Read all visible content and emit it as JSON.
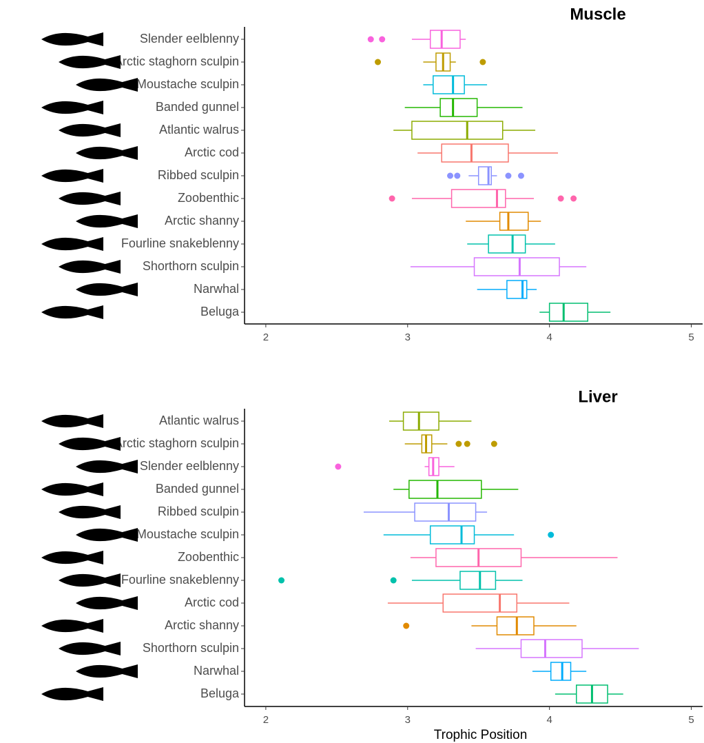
{
  "chart_data": [
    {
      "type": "boxplot",
      "title": "Muscle",
      "xlim": [
        1.85,
        5.08
      ],
      "xticks": [
        2,
        3,
        4,
        5
      ],
      "boxes": [
        {
          "category": "Slender eelblenny",
          "color": "#F962DD",
          "min": 3.03,
          "q1": 3.16,
          "median": 3.24,
          "q3": 3.37,
          "max": 3.41,
          "outliers": [
            2.74,
            2.82
          ]
        },
        {
          "category": "Arctic staghorn sculpin",
          "color": "#BE9C00",
          "min": 3.11,
          "q1": 3.2,
          "median": 3.25,
          "q3": 3.3,
          "max": 3.34,
          "outliers": [
            2.79,
            3.53
          ]
        },
        {
          "category": "Moustache sculpin",
          "color": "#00BBDA",
          "min": 3.11,
          "q1": 3.18,
          "median": 3.32,
          "q3": 3.4,
          "max": 3.56,
          "outliers": []
        },
        {
          "category": "Banded gunnel",
          "color": "#24B700",
          "min": 2.98,
          "q1": 3.23,
          "median": 3.32,
          "q3": 3.49,
          "max": 3.81,
          "outliers": []
        },
        {
          "category": "Atlantic walrus",
          "color": "#8CAB00",
          "min": 2.9,
          "q1": 3.03,
          "median": 3.42,
          "q3": 3.67,
          "max": 3.9,
          "outliers": []
        },
        {
          "category": "Arctic cod",
          "color": "#F8766D",
          "min": 3.07,
          "q1": 3.24,
          "median": 3.45,
          "q3": 3.71,
          "max": 4.06,
          "outliers": []
        },
        {
          "category": "Ribbed sculpin",
          "color": "#8B93FF",
          "min": 3.43,
          "q1": 3.5,
          "median": 3.57,
          "q3": 3.59,
          "max": 3.63,
          "outliers": [
            3.3,
            3.35,
            3.71,
            3.8
          ]
        },
        {
          "category": "Zoobenthic",
          "color": "#FF65AC",
          "min": 3.03,
          "q1": 3.31,
          "median": 3.63,
          "q3": 3.69,
          "max": 3.89,
          "outliers": [
            2.89,
            4.08,
            4.17
          ]
        },
        {
          "category": "Arctic shanny",
          "color": "#E18A00",
          "min": 3.41,
          "q1": 3.65,
          "median": 3.71,
          "q3": 3.85,
          "max": 3.94,
          "outliers": []
        },
        {
          "category": "Fourline snakeblenny",
          "color": "#00C1AB",
          "min": 3.42,
          "q1": 3.57,
          "median": 3.74,
          "q3": 3.83,
          "max": 4.04,
          "outliers": []
        },
        {
          "category": "Shorthorn sculpin",
          "color": "#D575FE",
          "min": 3.02,
          "q1": 3.47,
          "median": 3.79,
          "q3": 4.07,
          "max": 4.26,
          "outliers": []
        },
        {
          "category": "Narwhal",
          "color": "#00ACFC",
          "min": 3.49,
          "q1": 3.7,
          "median": 3.81,
          "q3": 3.84,
          "max": 3.91,
          "outliers": []
        },
        {
          "category": "Beluga",
          "color": "#00BE70",
          "min": 3.93,
          "q1": 4.0,
          "median": 4.1,
          "q3": 4.27,
          "max": 4.43,
          "outliers": []
        }
      ]
    },
    {
      "type": "boxplot",
      "title": "Liver",
      "x_label": "Trophic Position",
      "xlim": [
        1.85,
        5.08
      ],
      "xticks": [
        2,
        3,
        4,
        5
      ],
      "boxes": [
        {
          "category": "Atlantic walrus",
          "color": "#8CAB00",
          "min": 2.87,
          "q1": 2.97,
          "median": 3.08,
          "q3": 3.22,
          "max": 3.45,
          "outliers": []
        },
        {
          "category": "Arctic staghorn sculpin",
          "color": "#BE9C00",
          "min": 2.98,
          "q1": 3.1,
          "median": 3.13,
          "q3": 3.17,
          "max": 3.28,
          "outliers": [
            3.36,
            3.42,
            3.61
          ]
        },
        {
          "category": "Slender eelblenny",
          "color": "#F962DD",
          "min": 3.12,
          "q1": 3.15,
          "median": 3.18,
          "q3": 3.22,
          "max": 3.33,
          "outliers": [
            2.51
          ]
        },
        {
          "category": "Banded gunnel",
          "color": "#24B700",
          "min": 2.9,
          "q1": 3.01,
          "median": 3.21,
          "q3": 3.52,
          "max": 3.78,
          "outliers": []
        },
        {
          "category": "Ribbed sculpin",
          "color": "#8B93FF",
          "min": 2.69,
          "q1": 3.05,
          "median": 3.29,
          "q3": 3.48,
          "max": 3.56,
          "outliers": []
        },
        {
          "category": "Moustache sculpin",
          "color": "#00BBDA",
          "min": 2.83,
          "q1": 3.16,
          "median": 3.38,
          "q3": 3.47,
          "max": 3.75,
          "outliers": [
            4.01
          ]
        },
        {
          "category": "Zoobenthic",
          "color": "#FF65AC",
          "min": 3.02,
          "q1": 3.2,
          "median": 3.5,
          "q3": 3.8,
          "max": 4.48,
          "outliers": []
        },
        {
          "category": "Fourline snakeblenny",
          "color": "#00C1AB",
          "min": 3.03,
          "q1": 3.37,
          "median": 3.51,
          "q3": 3.62,
          "max": 3.81,
          "outliers": [
            2.11,
            2.9
          ]
        },
        {
          "category": "Arctic cod",
          "color": "#F8766D",
          "min": 2.86,
          "q1": 3.25,
          "median": 3.65,
          "q3": 3.77,
          "max": 4.14,
          "outliers": []
        },
        {
          "category": "Arctic shanny",
          "color": "#E18A00",
          "min": 3.45,
          "q1": 3.63,
          "median": 3.77,
          "q3": 3.89,
          "max": 4.19,
          "outliers": [
            2.99
          ]
        },
        {
          "category": "Shorthorn sculpin",
          "color": "#D575FE",
          "min": 3.48,
          "q1": 3.8,
          "median": 3.97,
          "q3": 4.23,
          "max": 4.63,
          "outliers": []
        },
        {
          "category": "Narwhal",
          "color": "#00ACFC",
          "min": 3.88,
          "q1": 4.01,
          "median": 4.09,
          "q3": 4.15,
          "max": 4.26,
          "outliers": []
        },
        {
          "category": "Beluga",
          "color": "#00BE70",
          "min": 4.04,
          "q1": 4.19,
          "median": 4.3,
          "q3": 4.41,
          "max": 4.52,
          "outliers": []
        }
      ]
    }
  ]
}
